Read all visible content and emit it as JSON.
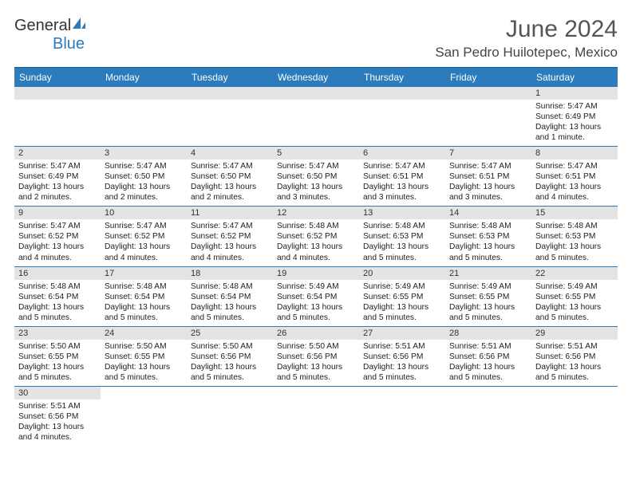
{
  "logo": {
    "text1": "General",
    "text2": "Blue"
  },
  "header": {
    "title": "June 2024",
    "location": "San Pedro Huilotepec, Mexico"
  },
  "colors": {
    "header_bg": "#2b7bbd",
    "header_text": "#ffffff",
    "daynum_bg": "#e4e4e4",
    "row_border": "#2b7bbd",
    "title_color": "#555555",
    "body_text": "#222222"
  },
  "daysOfWeek": [
    "Sunday",
    "Monday",
    "Tuesday",
    "Wednesday",
    "Thursday",
    "Friday",
    "Saturday"
  ],
  "weeks": [
    [
      null,
      null,
      null,
      null,
      null,
      null,
      {
        "n": "1",
        "sunrise": "Sunrise: 5:47 AM",
        "sunset": "Sunset: 6:49 PM",
        "daylight": "Daylight: 13 hours and 1 minute."
      }
    ],
    [
      {
        "n": "2",
        "sunrise": "Sunrise: 5:47 AM",
        "sunset": "Sunset: 6:49 PM",
        "daylight": "Daylight: 13 hours and 2 minutes."
      },
      {
        "n": "3",
        "sunrise": "Sunrise: 5:47 AM",
        "sunset": "Sunset: 6:50 PM",
        "daylight": "Daylight: 13 hours and 2 minutes."
      },
      {
        "n": "4",
        "sunrise": "Sunrise: 5:47 AM",
        "sunset": "Sunset: 6:50 PM",
        "daylight": "Daylight: 13 hours and 2 minutes."
      },
      {
        "n": "5",
        "sunrise": "Sunrise: 5:47 AM",
        "sunset": "Sunset: 6:50 PM",
        "daylight": "Daylight: 13 hours and 3 minutes."
      },
      {
        "n": "6",
        "sunrise": "Sunrise: 5:47 AM",
        "sunset": "Sunset: 6:51 PM",
        "daylight": "Daylight: 13 hours and 3 minutes."
      },
      {
        "n": "7",
        "sunrise": "Sunrise: 5:47 AM",
        "sunset": "Sunset: 6:51 PM",
        "daylight": "Daylight: 13 hours and 3 minutes."
      },
      {
        "n": "8",
        "sunrise": "Sunrise: 5:47 AM",
        "sunset": "Sunset: 6:51 PM",
        "daylight": "Daylight: 13 hours and 4 minutes."
      }
    ],
    [
      {
        "n": "9",
        "sunrise": "Sunrise: 5:47 AM",
        "sunset": "Sunset: 6:52 PM",
        "daylight": "Daylight: 13 hours and 4 minutes."
      },
      {
        "n": "10",
        "sunrise": "Sunrise: 5:47 AM",
        "sunset": "Sunset: 6:52 PM",
        "daylight": "Daylight: 13 hours and 4 minutes."
      },
      {
        "n": "11",
        "sunrise": "Sunrise: 5:47 AM",
        "sunset": "Sunset: 6:52 PM",
        "daylight": "Daylight: 13 hours and 4 minutes."
      },
      {
        "n": "12",
        "sunrise": "Sunrise: 5:48 AM",
        "sunset": "Sunset: 6:52 PM",
        "daylight": "Daylight: 13 hours and 4 minutes."
      },
      {
        "n": "13",
        "sunrise": "Sunrise: 5:48 AM",
        "sunset": "Sunset: 6:53 PM",
        "daylight": "Daylight: 13 hours and 5 minutes."
      },
      {
        "n": "14",
        "sunrise": "Sunrise: 5:48 AM",
        "sunset": "Sunset: 6:53 PM",
        "daylight": "Daylight: 13 hours and 5 minutes."
      },
      {
        "n": "15",
        "sunrise": "Sunrise: 5:48 AM",
        "sunset": "Sunset: 6:53 PM",
        "daylight": "Daylight: 13 hours and 5 minutes."
      }
    ],
    [
      {
        "n": "16",
        "sunrise": "Sunrise: 5:48 AM",
        "sunset": "Sunset: 6:54 PM",
        "daylight": "Daylight: 13 hours and 5 minutes."
      },
      {
        "n": "17",
        "sunrise": "Sunrise: 5:48 AM",
        "sunset": "Sunset: 6:54 PM",
        "daylight": "Daylight: 13 hours and 5 minutes."
      },
      {
        "n": "18",
        "sunrise": "Sunrise: 5:48 AM",
        "sunset": "Sunset: 6:54 PM",
        "daylight": "Daylight: 13 hours and 5 minutes."
      },
      {
        "n": "19",
        "sunrise": "Sunrise: 5:49 AM",
        "sunset": "Sunset: 6:54 PM",
        "daylight": "Daylight: 13 hours and 5 minutes."
      },
      {
        "n": "20",
        "sunrise": "Sunrise: 5:49 AM",
        "sunset": "Sunset: 6:55 PM",
        "daylight": "Daylight: 13 hours and 5 minutes."
      },
      {
        "n": "21",
        "sunrise": "Sunrise: 5:49 AM",
        "sunset": "Sunset: 6:55 PM",
        "daylight": "Daylight: 13 hours and 5 minutes."
      },
      {
        "n": "22",
        "sunrise": "Sunrise: 5:49 AM",
        "sunset": "Sunset: 6:55 PM",
        "daylight": "Daylight: 13 hours and 5 minutes."
      }
    ],
    [
      {
        "n": "23",
        "sunrise": "Sunrise: 5:50 AM",
        "sunset": "Sunset: 6:55 PM",
        "daylight": "Daylight: 13 hours and 5 minutes."
      },
      {
        "n": "24",
        "sunrise": "Sunrise: 5:50 AM",
        "sunset": "Sunset: 6:55 PM",
        "daylight": "Daylight: 13 hours and 5 minutes."
      },
      {
        "n": "25",
        "sunrise": "Sunrise: 5:50 AM",
        "sunset": "Sunset: 6:56 PM",
        "daylight": "Daylight: 13 hours and 5 minutes."
      },
      {
        "n": "26",
        "sunrise": "Sunrise: 5:50 AM",
        "sunset": "Sunset: 6:56 PM",
        "daylight": "Daylight: 13 hours and 5 minutes."
      },
      {
        "n": "27",
        "sunrise": "Sunrise: 5:51 AM",
        "sunset": "Sunset: 6:56 PM",
        "daylight": "Daylight: 13 hours and 5 minutes."
      },
      {
        "n": "28",
        "sunrise": "Sunrise: 5:51 AM",
        "sunset": "Sunset: 6:56 PM",
        "daylight": "Daylight: 13 hours and 5 minutes."
      },
      {
        "n": "29",
        "sunrise": "Sunrise: 5:51 AM",
        "sunset": "Sunset: 6:56 PM",
        "daylight": "Daylight: 13 hours and 5 minutes."
      }
    ],
    [
      {
        "n": "30",
        "sunrise": "Sunrise: 5:51 AM",
        "sunset": "Sunset: 6:56 PM",
        "daylight": "Daylight: 13 hours and 4 minutes."
      },
      null,
      null,
      null,
      null,
      null,
      null
    ]
  ]
}
